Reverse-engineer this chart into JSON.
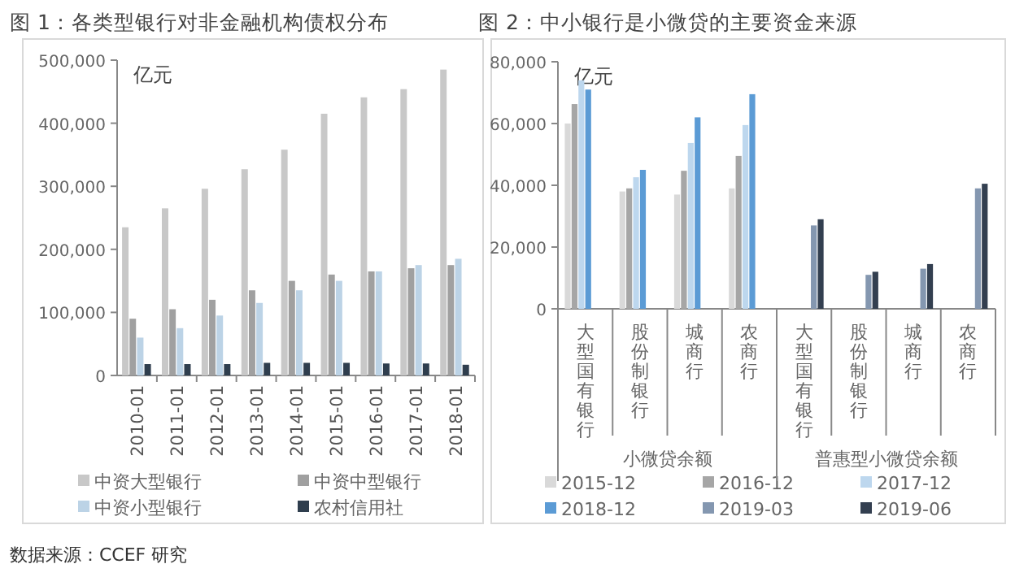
{
  "chart_data": [
    {
      "type": "bar",
      "title": "图 1：各类型银行对非金融机构债权分布",
      "ylabel": "亿元",
      "categories": [
        "2010-01",
        "2011-01",
        "2012-01",
        "2013-01",
        "2014-01",
        "2015-01",
        "2016-01",
        "2017-01",
        "2018-01"
      ],
      "ylim": [
        0,
        500000
      ],
      "yticks": [
        {
          "value": 0,
          "label": "0"
        },
        {
          "value": 100000,
          "label": "100,000"
        },
        {
          "value": 200000,
          "label": "200,000"
        },
        {
          "value": 300000,
          "label": "300,000"
        },
        {
          "value": 400000,
          "label": "400,000"
        },
        {
          "value": 500000,
          "label": "500,000"
        }
      ],
      "legend": "bottom",
      "series": [
        {
          "name": "中资大型银行",
          "color": "#c8c8c8",
          "values": [
            235000,
            265000,
            296000,
            327000,
            358000,
            415000,
            441000,
            454000,
            485000
          ]
        },
        {
          "name": "中资中型银行",
          "color": "#a0a0a0",
          "values": [
            90000,
            105000,
            120000,
            135000,
            150000,
            160000,
            165000,
            170000,
            175000
          ]
        },
        {
          "name": "中资小型银行",
          "color": "#bcd3e6",
          "values": [
            60000,
            75000,
            95000,
            115000,
            135000,
            150000,
            165000,
            175000,
            185000
          ]
        },
        {
          "name": "农村信用社",
          "color": "#2f3e4e",
          "values": [
            18000,
            18000,
            18000,
            20000,
            20000,
            20000,
            19000,
            19000,
            17000
          ]
        }
      ],
      "annotations": [
        "数据来源：CCEF 研究"
      ]
    },
    {
      "type": "bar",
      "title": "图 2：中小银行是小微贷的主要资金来源",
      "ylabel": "亿元",
      "categories": [
        "大型国有银行",
        "股份制银行",
        "城商行",
        "农商行",
        "大型国有银行",
        "股份制银行",
        "城商行",
        "农商行"
      ],
      "ylim": [
        0,
        80000
      ],
      "yticks": [
        {
          "value": 0,
          "label": "0"
        },
        {
          "value": 20000,
          "label": "20,000"
        },
        {
          "value": 40000,
          "label": "40,000"
        },
        {
          "value": 60000,
          "label": "60,000"
        },
        {
          "value": 80000,
          "label": "80,000"
        }
      ],
      "legend": "bottom",
      "series": [
        {
          "name": "2015-12",
          "color": "#d9d9d9",
          "values": [
            60000,
            38000,
            37000,
            39000,
            null,
            null,
            null,
            null
          ]
        },
        {
          "name": "2016-12",
          "color": "#a6a6a6",
          "values": [
            66300,
            39000,
            44700,
            49500,
            null,
            null,
            null,
            null
          ]
        },
        {
          "name": "2017-12",
          "color": "#bdd7ee",
          "values": [
            74000,
            42600,
            53700,
            59500,
            null,
            null,
            null,
            null
          ]
        },
        {
          "name": "2018-12",
          "color": "#5b9bd5",
          "values": [
            71000,
            45000,
            62000,
            69500,
            null,
            null,
            null,
            null
          ]
        },
        {
          "name": "2019-03",
          "color": "#8497b0",
          "values": [
            null,
            null,
            null,
            null,
            27000,
            11000,
            13000,
            39000
          ]
        },
        {
          "name": "2019-06",
          "color": "#333f50",
          "values": [
            null,
            null,
            null,
            null,
            29000,
            12000,
            14500,
            40500
          ]
        }
      ],
      "annotations": [
        "小微贷余额",
        "普惠型小微贷余额"
      ]
    }
  ]
}
